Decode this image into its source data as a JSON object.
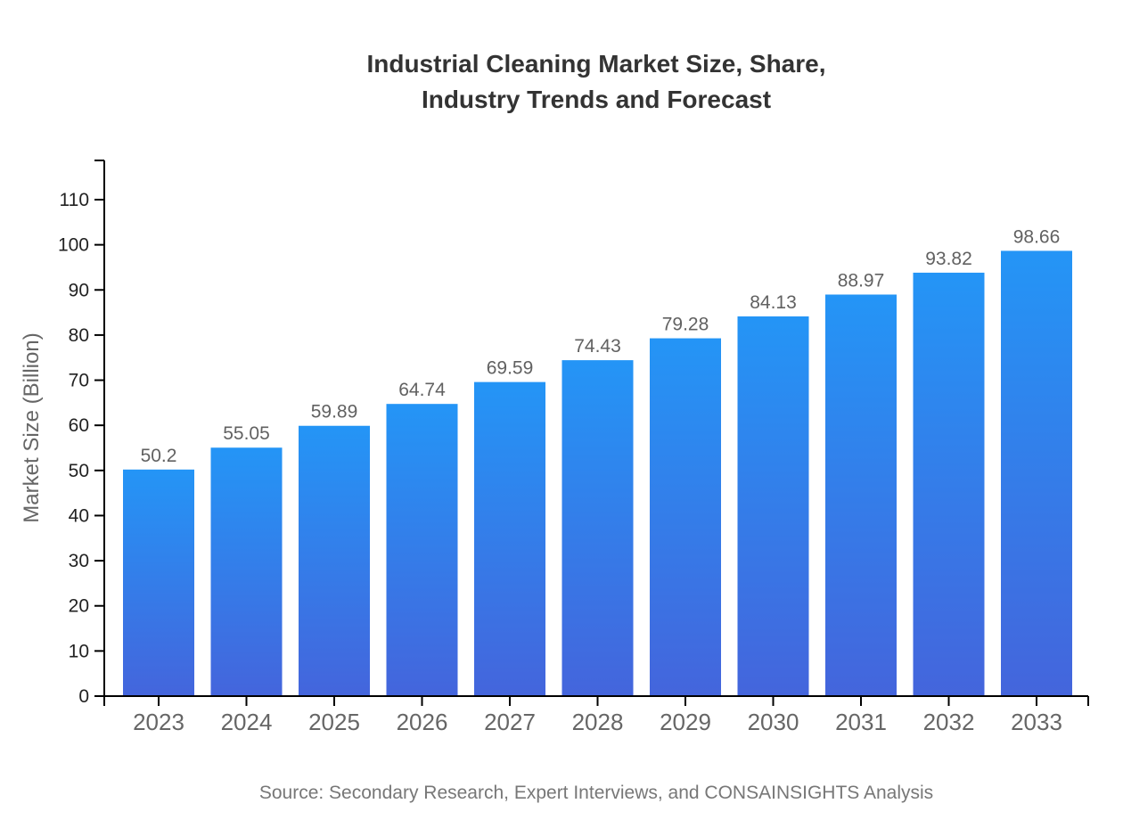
{
  "title": {
    "line1": "Industrial Cleaning Market Size, Share,",
    "line2": "Industry Trends and Forecast"
  },
  "source_note": "Source: Secondary Research, Expert Interviews, and CONSAINSIGHTS Analysis",
  "chart_data": {
    "type": "bar",
    "title": "Industrial Cleaning Market Size, Share, Industry Trends and Forecast",
    "xlabel": "",
    "ylabel": "Market Size (Billion)",
    "categories": [
      "2023",
      "2024",
      "2025",
      "2026",
      "2027",
      "2028",
      "2029",
      "2030",
      "2031",
      "2032",
      "2033"
    ],
    "values": [
      50.2,
      55.05,
      59.89,
      64.74,
      69.59,
      74.43,
      79.28,
      84.13,
      88.97,
      93.82,
      98.66
    ],
    "value_labels": [
      "50.2",
      "55.05",
      "59.89",
      "64.74",
      "69.59",
      "74.43",
      "79.28",
      "84.13",
      "88.97",
      "93.82",
      "98.66"
    ],
    "ylim": [
      0,
      118
    ],
    "yticks": [
      0,
      10,
      20,
      30,
      40,
      50,
      60,
      70,
      80,
      90,
      100,
      110
    ],
    "grid": false,
    "legend": null,
    "colors": {
      "bar_gradient_top": "#2495f6",
      "bar_gradient_bottom": "#4465dc",
      "axis_line": "#000000",
      "y_tick_label": "#222222",
      "x_tick_label": "#666666",
      "value_label": "#616161",
      "title_text": "#333333",
      "source_text": "#777777"
    }
  }
}
